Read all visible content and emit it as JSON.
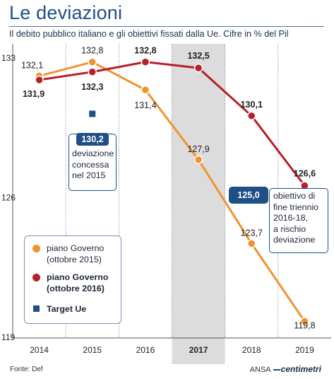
{
  "header": {
    "title": "Le deviazioni",
    "subtitle": "Il debito pubblico italiano e gli obiettivi fissati dalla Ue. Cifre in % del Pil"
  },
  "chart_data": {
    "type": "line",
    "x": [
      "2014",
      "2015",
      "2016",
      "2017",
      "2018",
      "2019"
    ],
    "highlight_x": "2017",
    "ylim": [
      119,
      133
    ],
    "yticks": [
      "133",
      "126",
      "119"
    ],
    "series": [
      {
        "name": "piano Governo (ottobre 2015)",
        "color": "#f0922e",
        "values": [
          132.1,
          132.8,
          131.4,
          127.9,
          123.7,
          119.8
        ],
        "labels": [
          "132,1",
          "132,8",
          "131,4",
          "127,9",
          "123,7",
          "119,8"
        ]
      },
      {
        "name": "piano Governo (ottobre 2016)",
        "color": "#b81f2a",
        "values": [
          131.9,
          132.3,
          132.8,
          132.5,
          130.1,
          126.6
        ],
        "labels": [
          "131,9",
          "132,3",
          "132,8",
          "132,5",
          "130,1",
          "126,6"
        ]
      },
      {
        "name": "Target Ue",
        "color": "#1f4f86",
        "points": [
          {
            "x": "2015",
            "y": 130.2,
            "label": "130,2"
          },
          {
            "x": "2019",
            "y": 125.0,
            "label": "125,0"
          }
        ]
      }
    ],
    "legend_position": "bottom-left",
    "grid": "vertical"
  },
  "callouts": {
    "deviazione": {
      "value": "130,2",
      "lines": [
        "deviazione",
        "concessa",
        "nel 2015"
      ]
    },
    "obiettivo": {
      "value": "125,0",
      "lines": [
        "obiettivo di",
        "fine triennio",
        "2016-18,",
        "a rischio",
        "deviazione"
      ]
    }
  },
  "legend": {
    "items": [
      {
        "lines": [
          "piano Governo",
          "(ottobre 2015)"
        ],
        "color": "#f0922e",
        "shape": "dot",
        "bold": false
      },
      {
        "lines": [
          "piano Governo",
          "(ottobre 2016)"
        ],
        "color": "#b81f2a",
        "shape": "dot",
        "bold": true
      },
      {
        "lines": [
          "Target Ue"
        ],
        "color": "#1f4f86",
        "shape": "square",
        "bold": true
      }
    ]
  },
  "footer": {
    "source": "Fonte: Def",
    "agency": "ANSA",
    "brand": "centimetri"
  }
}
